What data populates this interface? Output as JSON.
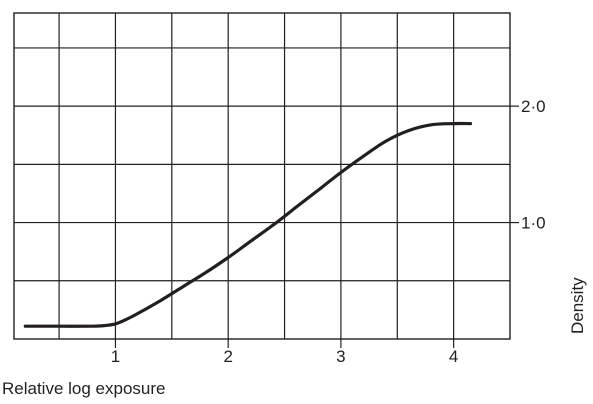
{
  "chart_data": {
    "type": "line",
    "title": "",
    "xlabel": "Relative log exposure",
    "ylabel": "Density",
    "xlim": [
      0.1,
      4.5
    ],
    "ylim": [
      0,
      2.8
    ],
    "grid": true,
    "y_axis_side": "right",
    "x_ticks": [
      {
        "value": 1,
        "label": "1"
      },
      {
        "value": 2,
        "label": "2"
      },
      {
        "value": 3,
        "label": "3"
      },
      {
        "value": 4,
        "label": "4"
      }
    ],
    "y_ticks": [
      {
        "value": 1.0,
        "label": "1·0"
      },
      {
        "value": 2.0,
        "label": "2·0"
      }
    ],
    "series": [
      {
        "x": [
          0.2,
          0.5,
          0.8,
          0.9,
          1.0,
          1.1,
          1.2,
          1.4,
          1.6,
          1.8,
          2.0,
          2.2,
          2.4,
          2.6,
          2.8,
          3.0,
          3.2,
          3.4,
          3.6,
          3.8,
          4.0,
          4.15
        ],
        "y": [
          0.11,
          0.11,
          0.11,
          0.115,
          0.13,
          0.17,
          0.22,
          0.33,
          0.45,
          0.57,
          0.7,
          0.84,
          0.98,
          1.13,
          1.28,
          1.43,
          1.57,
          1.7,
          1.79,
          1.84,
          1.85,
          1.85
        ]
      }
    ]
  }
}
